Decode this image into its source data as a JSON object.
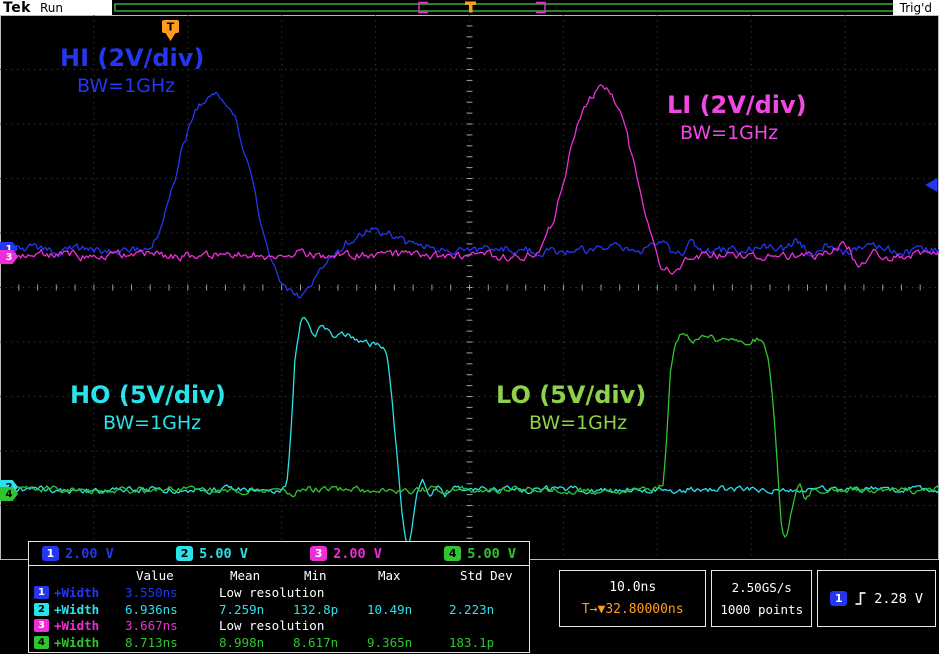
{
  "colors": {
    "orange": "#ff9b1e",
    "acq_green": "#3db83d",
    "grid_frame": "#b9bac2",
    "text_white": "#ffffff"
  },
  "header": {
    "logo": "Tek",
    "acquisition_status": "Run",
    "trigger_status": "Trig'd",
    "trigger_marker": "T"
  },
  "channels": [
    {
      "num": "1",
      "scale": "2.00 V",
      "color": "#2436f0",
      "badge_text_color": "#ffffff",
      "label": "HI (2V/div)",
      "bandwidth": "BW=1GHz",
      "label_color": "#2436f0"
    },
    {
      "num": "2",
      "scale": "5.00 V",
      "color": "#29e2ea",
      "badge_text_color": "#000000",
      "label": "HO (5V/div)",
      "bandwidth": "BW=1GHz",
      "label_color": "#29e2ea"
    },
    {
      "num": "3",
      "scale": "2.00 V",
      "color": "#ee2ed8",
      "badge_text_color": "#ffffff",
      "label": "LI (2V/div)",
      "bandwidth": "BW=1GHz",
      "label_color": "#f049e2"
    },
    {
      "num": "4",
      "scale": "5.00 V",
      "color": "#30c430",
      "badge_text_color": "#000000",
      "label": "LO (5V/div)",
      "bandwidth": "BW=1GHz",
      "label_color": "#8fd04c"
    }
  ],
  "measurements": {
    "headers": [
      "Value",
      "Mean",
      "Min",
      "Max",
      "Std Dev"
    ],
    "rows": [
      {
        "ch": 0,
        "name": "+Width",
        "value": "3.550ns",
        "note": "Low resolution"
      },
      {
        "ch": 1,
        "name": "+Width",
        "value": "6.936ns",
        "mean": "7.259n",
        "min": "132.8p",
        "max": "10.49n",
        "stddev": "2.223n"
      },
      {
        "ch": 2,
        "name": "+Width",
        "value": "3.667ns",
        "note": "Low resolution"
      },
      {
        "ch": 3,
        "name": "+Width",
        "value": "8.713ns",
        "mean": "8.998n",
        "min": "8.617n",
        "max": "9.365n",
        "stddev": "183.1p"
      }
    ]
  },
  "horizontal": {
    "scale": "10.0ns",
    "delay": "T→▼32.80000ns"
  },
  "acquisition": {
    "sample_rate": "2.50GS/s",
    "record_length": "1000 points"
  },
  "trigger": {
    "source": "1",
    "level": "2.28 V",
    "slope": "rising-edge"
  },
  "waveforms": {
    "type": "line",
    "grid": {
      "hdivs": 10,
      "vdivs": 10,
      "time_per_div": "10.0ns"
    },
    "draw_order": [
      1,
      3,
      0,
      2
    ],
    "traces": [
      {
        "channel": "1",
        "noise_div": 0.07,
        "points_div": [
          [
            0,
            4.32
          ],
          [
            0.3,
            4.28
          ],
          [
            0.6,
            4.36
          ],
          [
            0.9,
            4.29
          ],
          [
            1.2,
            4.34
          ],
          [
            1.55,
            4.3
          ],
          [
            1.65,
            4.1
          ],
          [
            1.8,
            3.4
          ],
          [
            1.95,
            2.4
          ],
          [
            2.1,
            1.72
          ],
          [
            2.3,
            1.48
          ],
          [
            2.5,
            1.92
          ],
          [
            2.65,
            2.8
          ],
          [
            2.8,
            3.9
          ],
          [
            2.95,
            4.7
          ],
          [
            3.08,
            5.08
          ],
          [
            3.18,
            5.18
          ],
          [
            3.3,
            5.0
          ],
          [
            3.45,
            4.62
          ],
          [
            3.6,
            4.3
          ],
          [
            3.75,
            4.1
          ],
          [
            3.95,
            3.96
          ],
          [
            4.15,
            4.02
          ],
          [
            4.35,
            4.18
          ],
          [
            4.6,
            4.3
          ],
          [
            4.9,
            4.32
          ],
          [
            5.4,
            4.3
          ],
          [
            6.0,
            4.34
          ],
          [
            6.5,
            4.29
          ],
          [
            6.9,
            4.3
          ],
          [
            7.05,
            4.16
          ],
          [
            7.2,
            4.44
          ],
          [
            7.35,
            4.2
          ],
          [
            7.5,
            4.35
          ],
          [
            7.9,
            4.3
          ],
          [
            8.35,
            4.28
          ],
          [
            8.5,
            4.14
          ],
          [
            8.65,
            4.44
          ],
          [
            8.8,
            4.2
          ],
          [
            8.95,
            4.36
          ],
          [
            9.3,
            4.28
          ],
          [
            9.6,
            4.34
          ],
          [
            10,
            4.32
          ]
        ]
      },
      {
        "channel": "2",
        "noise_div": 0.05,
        "points_div": [
          [
            0,
            8.72
          ],
          [
            0.5,
            8.7
          ],
          [
            1.0,
            8.74
          ],
          [
            1.5,
            8.7
          ],
          [
            2.0,
            8.73
          ],
          [
            2.5,
            8.7
          ],
          [
            3.0,
            8.72
          ],
          [
            3.06,
            8.55
          ],
          [
            3.1,
            7.6
          ],
          [
            3.14,
            6.4
          ],
          [
            3.2,
            5.66
          ],
          [
            3.27,
            5.58
          ],
          [
            3.34,
            5.88
          ],
          [
            3.44,
            5.7
          ],
          [
            3.56,
            5.92
          ],
          [
            3.7,
            5.88
          ],
          [
            3.85,
            6.02
          ],
          [
            4.0,
            6.06
          ],
          [
            4.08,
            6.12
          ],
          [
            4.14,
            6.5
          ],
          [
            4.2,
            7.6
          ],
          [
            4.27,
            8.9
          ],
          [
            4.33,
            9.72
          ],
          [
            4.38,
            9.5
          ],
          [
            4.44,
            8.8
          ],
          [
            4.5,
            8.56
          ],
          [
            4.58,
            8.9
          ],
          [
            4.66,
            8.66
          ],
          [
            4.75,
            8.78
          ],
          [
            4.85,
            8.7
          ],
          [
            5.3,
            8.72
          ],
          [
            6.0,
            8.7
          ],
          [
            6.5,
            8.73
          ],
          [
            7.0,
            8.7
          ],
          [
            7.12,
            8.78
          ],
          [
            7.3,
            8.7
          ],
          [
            8.0,
            8.72
          ],
          [
            8.2,
            8.76
          ],
          [
            8.35,
            8.7
          ],
          [
            9.0,
            8.72
          ],
          [
            9.5,
            8.7
          ],
          [
            10,
            8.72
          ]
        ]
      },
      {
        "channel": "3",
        "noise_div": 0.07,
        "points_div": [
          [
            0,
            4.41
          ],
          [
            0.5,
            4.39
          ],
          [
            1.0,
            4.43
          ],
          [
            1.5,
            4.39
          ],
          [
            2.0,
            4.42
          ],
          [
            2.5,
            4.39
          ],
          [
            3.0,
            4.44
          ],
          [
            3.2,
            4.38
          ],
          [
            3.5,
            4.42
          ],
          [
            4.0,
            4.39
          ],
          [
            4.5,
            4.42
          ],
          [
            5.0,
            4.4
          ],
          [
            5.55,
            4.42
          ],
          [
            5.75,
            4.3
          ],
          [
            5.9,
            3.7
          ],
          [
            6.05,
            2.7
          ],
          [
            6.2,
            1.8
          ],
          [
            6.35,
            1.42
          ],
          [
            6.45,
            1.38
          ],
          [
            6.55,
            1.62
          ],
          [
            6.7,
            2.4
          ],
          [
            6.85,
            3.5
          ],
          [
            6.95,
            4.2
          ],
          [
            7.05,
            4.62
          ],
          [
            7.15,
            4.68
          ],
          [
            7.3,
            4.5
          ],
          [
            7.45,
            4.42
          ],
          [
            7.8,
            4.4
          ],
          [
            8.3,
            4.42
          ],
          [
            8.85,
            4.38
          ],
          [
            9.0,
            4.24
          ],
          [
            9.15,
            4.56
          ],
          [
            9.3,
            4.3
          ],
          [
            9.45,
            4.46
          ],
          [
            9.7,
            4.38
          ],
          [
            10,
            4.41
          ]
        ]
      },
      {
        "channel": "4",
        "noise_div": 0.05,
        "points_div": [
          [
            0,
            8.72
          ],
          [
            0.6,
            8.7
          ],
          [
            1.2,
            8.74
          ],
          [
            1.8,
            8.7
          ],
          [
            2.4,
            8.73
          ],
          [
            3.0,
            8.7
          ],
          [
            3.1,
            8.78
          ],
          [
            3.25,
            8.7
          ],
          [
            4.0,
            8.72
          ],
          [
            4.3,
            8.76
          ],
          [
            4.45,
            8.7
          ],
          [
            5.0,
            8.72
          ],
          [
            5.6,
            8.7
          ],
          [
            6.2,
            8.73
          ],
          [
            6.9,
            8.7
          ],
          [
            7.06,
            8.58
          ],
          [
            7.1,
            7.7
          ],
          [
            7.14,
            6.6
          ],
          [
            7.2,
            5.98
          ],
          [
            7.28,
            5.88
          ],
          [
            7.38,
            6.0
          ],
          [
            7.5,
            5.9
          ],
          [
            7.65,
            5.98
          ],
          [
            7.8,
            5.9
          ],
          [
            7.95,
            5.98
          ],
          [
            8.08,
            5.94
          ],
          [
            8.15,
            6.04
          ],
          [
            8.2,
            6.6
          ],
          [
            8.26,
            7.8
          ],
          [
            8.32,
            9.3
          ],
          [
            8.37,
            9.62
          ],
          [
            8.43,
            9.1
          ],
          [
            8.5,
            8.6
          ],
          [
            8.58,
            8.88
          ],
          [
            8.66,
            8.68
          ],
          [
            8.78,
            8.76
          ],
          [
            8.9,
            8.7
          ],
          [
            9.4,
            8.72
          ],
          [
            10,
            8.72
          ]
        ]
      }
    ]
  }
}
